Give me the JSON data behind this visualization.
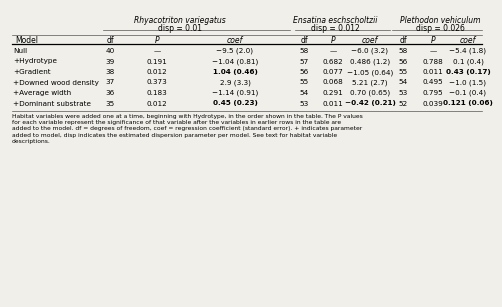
{
  "species": [
    {
      "name": "Rhyacotriton variegatus",
      "disp": "disp = 0.01"
    },
    {
      "name": "Ensatina eschscholtzii",
      "disp": "disp = 0.012"
    },
    {
      "name": "Plethodon vehiculum",
      "disp": "disp = 0.026"
    }
  ],
  "rows": [
    {
      "model": "Null",
      "rv": {
        "df": "40",
        "P": "—",
        "coef": "−9.5 (2.0)"
      },
      "ee": {
        "df": "58",
        "P": "—",
        "coef": "−6.0 (3.2)"
      },
      "pv": {
        "df": "58",
        "P": "—",
        "coef": "−5.4 (1.8)"
      }
    },
    {
      "model": "+Hydrotype",
      "rv": {
        "df": "39",
        "P": "0.191",
        "coef": "−1.04 (0.81)"
      },
      "ee": {
        "df": "57",
        "P": "0.682",
        "coef": "0.486 (1.2)"
      },
      "pv": {
        "df": "56",
        "P": "0.788",
        "coef": "0.1 (0.4)"
      }
    },
    {
      "model": "+Gradient",
      "rv": {
        "df": "38",
        "P": "0.012",
        "coef": "1.04 (0.46)"
      },
      "ee": {
        "df": "56",
        "P": "0.077",
        "coef": "−1.05 (0.64)"
      },
      "pv": {
        "df": "55",
        "P": "0.011",
        "coef": "0.43 (0.17)"
      }
    },
    {
      "model": "+Downed wood density",
      "rv": {
        "df": "37",
        "P": "0.373",
        "coef": "2.9 (3.3)"
      },
      "ee": {
        "df": "55",
        "P": "0.068",
        "coef": "5.21 (2.7)"
      },
      "pv": {
        "df": "54",
        "P": "0.495",
        "coef": "−1.0 (1.5)"
      }
    },
    {
      "model": "+Average width",
      "rv": {
        "df": "36",
        "P": "0.183",
        "coef": "−1.14 (0.91)"
      },
      "ee": {
        "df": "54",
        "P": "0.291",
        "coef": "0.70 (0.65)"
      },
      "pv": {
        "df": "53",
        "P": "0.795",
        "coef": "−0.1 (0.4)"
      }
    },
    {
      "model": "+Dominant substrate",
      "rv": {
        "df": "35",
        "P": "0.012",
        "coef": "0.45 (0.23)"
      },
      "ee": {
        "df": "53",
        "P": "0.011",
        "coef": "−0.42 (0.21)"
      },
      "pv": {
        "df": "52",
        "P": "0.039",
        "coef": "0.121 (0.06)"
      }
    }
  ],
  "bold_coefs": {
    "rv": [
      "1.04 (0.46)",
      "0.45 (0.23)"
    ],
    "ee": [
      "−0.42 (0.21)"
    ],
    "pv": [
      "0.43 (0.17)",
      "0.121 (0.06)"
    ]
  },
  "footnote": "Habitat variables were added one at a time, beginning with Hydrotype, in the order shown in the table. The P values for each variable represent the significance of that variable after the variables in earlier rows in the table are added to the model. df = degrees of freedom, coef = regression coefficient (standard error). + indicates parameter added to model, disp indicates the estimated dispersion parameter per model. See text for habitat variable descriptions.",
  "bg_color": "#f0efea",
  "text_color": "#000000",
  "line_color": "#555555"
}
